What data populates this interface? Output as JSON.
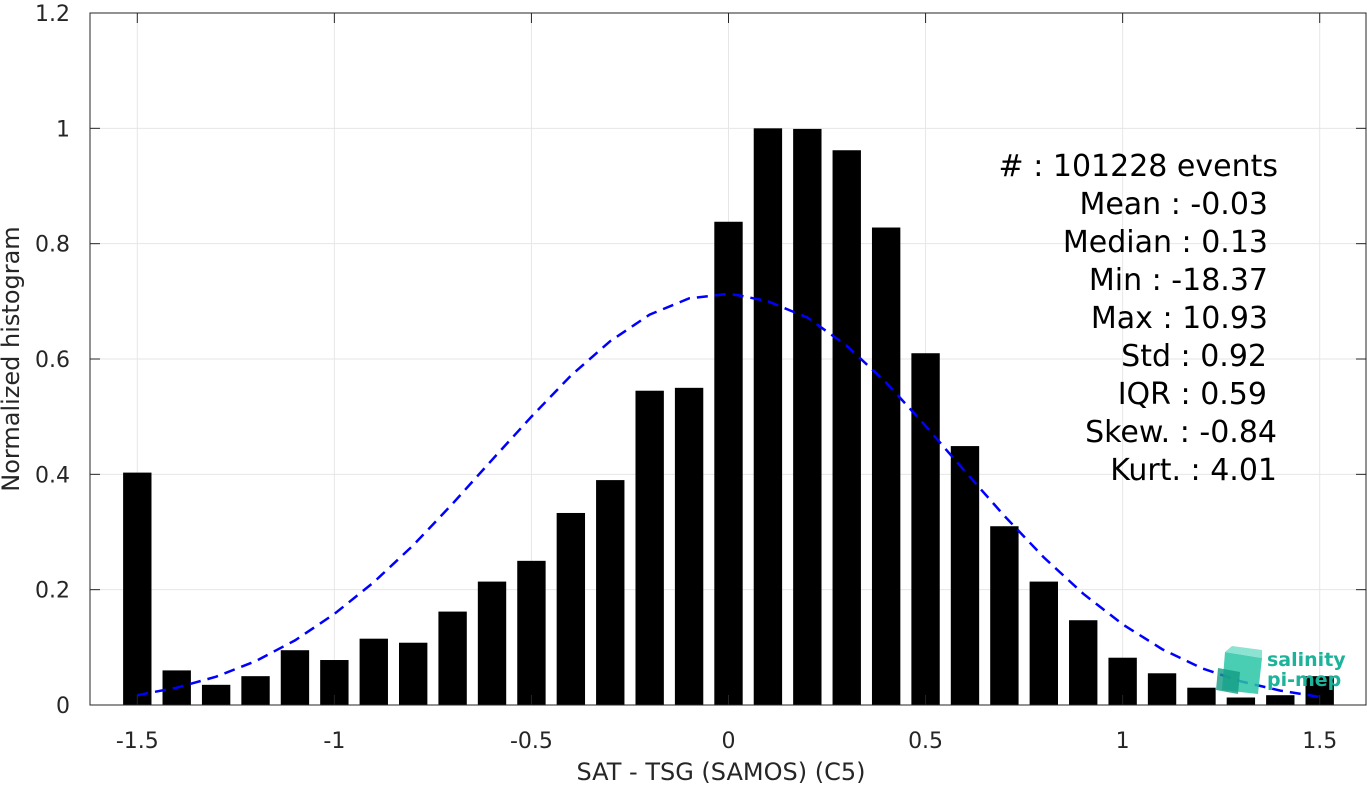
{
  "chart_data": {
    "type": "bar",
    "xlabel": "SAT - TSG (SAMOS) (C5)",
    "ylabel": "Normalized histogram",
    "xlim": [
      -1.62,
      1.62
    ],
    "ylim": [
      0,
      1.2
    ],
    "x_ticks": [
      "-1.5",
      "-1",
      "-0.5",
      "0",
      "0.5",
      "1",
      "1.5"
    ],
    "x_tick_values": [
      -1.5,
      -1,
      -0.5,
      0,
      0.5,
      1,
      1.5
    ],
    "y_ticks": [
      "0",
      "0.2",
      "0.4",
      "0.6",
      "0.8",
      "1",
      "1.2"
    ],
    "y_tick_values": [
      0,
      0.2,
      0.4,
      0.6,
      0.8,
      1,
      1.2
    ],
    "grid": true,
    "bar_color": "#000000",
    "bin_centers": [
      -1.5,
      -1.4,
      -1.3,
      -1.2,
      -1.1,
      -1.0,
      -0.9,
      -0.8,
      -0.7,
      -0.6,
      -0.5,
      -0.4,
      -0.3,
      -0.2,
      -0.1,
      0.0,
      0.1,
      0.2,
      0.3,
      0.4,
      0.5,
      0.6,
      0.7,
      0.8,
      0.9,
      1.0,
      1.1,
      1.2,
      1.3,
      1.4,
      1.5
    ],
    "values": [
      0.403,
      0.06,
      0.035,
      0.05,
      0.095,
      0.078,
      0.115,
      0.108,
      0.162,
      0.214,
      0.25,
      0.333,
      0.39,
      0.545,
      0.55,
      0.838,
      1.0,
      0.999,
      0.962,
      0.828,
      0.61,
      0.449,
      0.31,
      0.214,
      0.147,
      0.082,
      0.055,
      0.03,
      0.013,
      0.017,
      0.05
    ],
    "fit_curve": {
      "style": "dashed",
      "color": "#0000ff",
      "x": [
        -1.5,
        -1.4,
        -1.3,
        -1.2,
        -1.1,
        -1.0,
        -0.9,
        -0.8,
        -0.7,
        -0.6,
        -0.5,
        -0.4,
        -0.3,
        -0.2,
        -0.1,
        0.0,
        0.03,
        0.1,
        0.2,
        0.3,
        0.4,
        0.5,
        0.6,
        0.7,
        0.8,
        0.9,
        1.0,
        1.1,
        1.2,
        1.3,
        1.4,
        1.5
      ],
      "y": [
        0.017,
        0.03,
        0.049,
        0.076,
        0.112,
        0.158,
        0.213,
        0.277,
        0.349,
        0.425,
        0.5,
        0.571,
        0.631,
        0.677,
        0.705,
        0.713,
        0.71,
        0.7,
        0.672,
        0.623,
        0.559,
        0.484,
        0.405,
        0.328,
        0.256,
        0.193,
        0.14,
        0.097,
        0.064,
        0.041,
        0.025,
        0.014
      ]
    },
    "annotations": [
      "#  : 101228 events",
      "Mean : -0.03",
      "Median : 0.13",
      "Min : -18.37",
      "Max : 10.93",
      "Std : 0.92",
      "IQR : 0.59",
      "Skew. : -0.84",
      "Kurt. : 4.01"
    ]
  },
  "logo": {
    "line1": "salinity",
    "line2": "pi-mep",
    "color": "#1db39a"
  }
}
